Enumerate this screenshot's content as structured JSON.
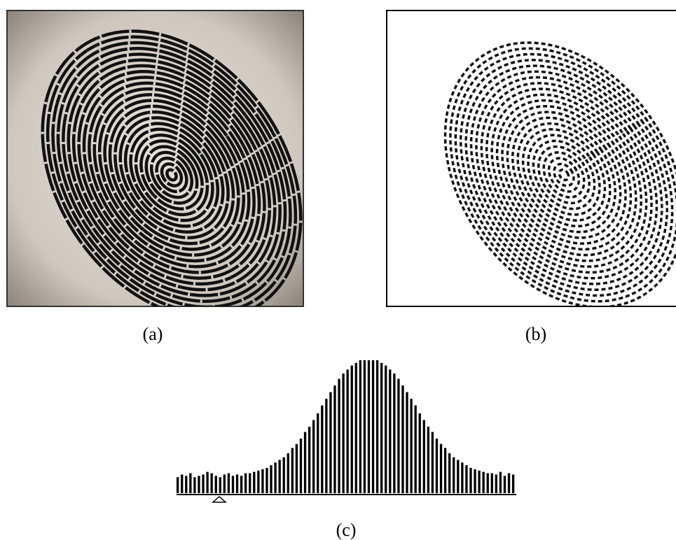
{
  "panels": [
    {
      "label": "(a)"
    },
    {
      "label": "(b)"
    },
    {
      "label": "(c)"
    }
  ],
  "chart_data": {
    "type": "histogram",
    "values": [
      12,
      14,
      13,
      15,
      12,
      13,
      14,
      16,
      15,
      13,
      12,
      14,
      15,
      13,
      14,
      13,
      15,
      15,
      16,
      17,
      18,
      19,
      21,
      23,
      25,
      27,
      30,
      34,
      37,
      41,
      46,
      50,
      55,
      60,
      66,
      71,
      76,
      81,
      86,
      90,
      93,
      96,
      98,
      100,
      100,
      100,
      100,
      100,
      98,
      96,
      93,
      90,
      86,
      81,
      76,
      71,
      66,
      60,
      55,
      50,
      46,
      41,
      37,
      34,
      30,
      27,
      25,
      23,
      21,
      19,
      18,
      17,
      16,
      15,
      15,
      14,
      16,
      13,
      15,
      14
    ],
    "ylim": [
      0,
      100
    ]
  }
}
